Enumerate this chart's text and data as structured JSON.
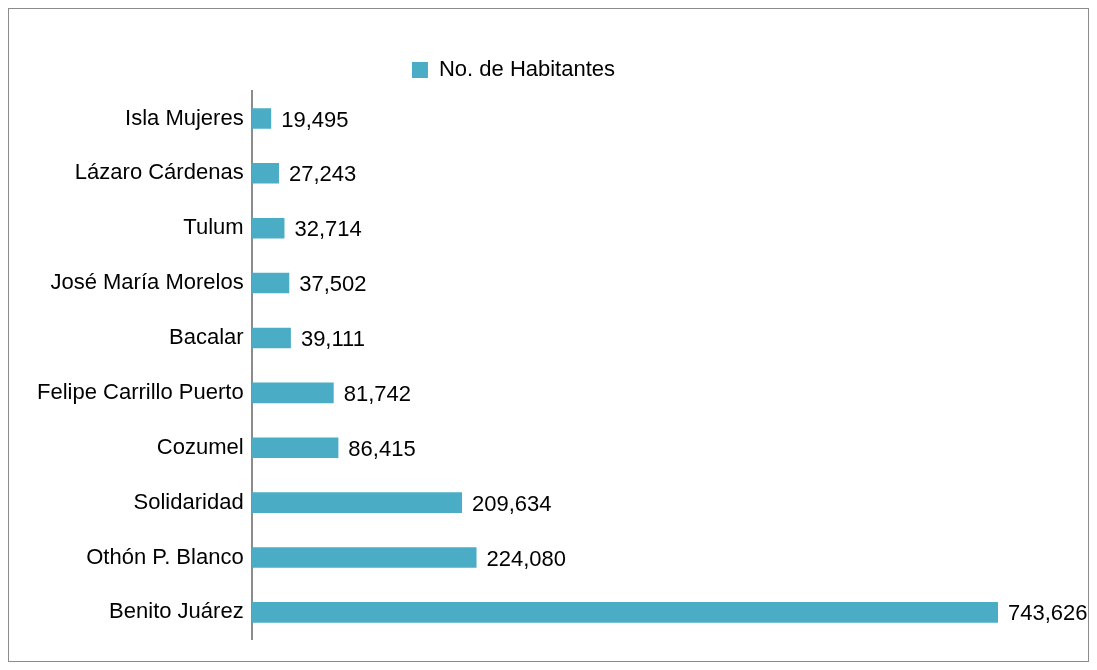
{
  "chart_data": {
    "type": "bar",
    "orientation": "horizontal",
    "categories": [
      "Isla Mujeres",
      "Lázaro Cárdenas",
      "Tulum",
      "José María Morelos",
      "Bacalar",
      "Felipe Carrillo Puerto",
      "Cozumel",
      "Solidaridad",
      "Othón P. Blanco",
      "Benito Juárez"
    ],
    "series": [
      {
        "name": "No. de Habitantes",
        "color": "#4bacc6",
        "values": [
          19495,
          27243,
          32714,
          37502,
          39111,
          81742,
          86415,
          209634,
          224080,
          743626
        ],
        "value_labels": [
          "19,495",
          "27,243",
          "32,714",
          "37,502",
          "39,111",
          "81,742",
          "86,415",
          "209,634",
          "224,080",
          "743,626"
        ]
      }
    ],
    "legend": "top",
    "grid": false,
    "tick_labels": "y"
  }
}
